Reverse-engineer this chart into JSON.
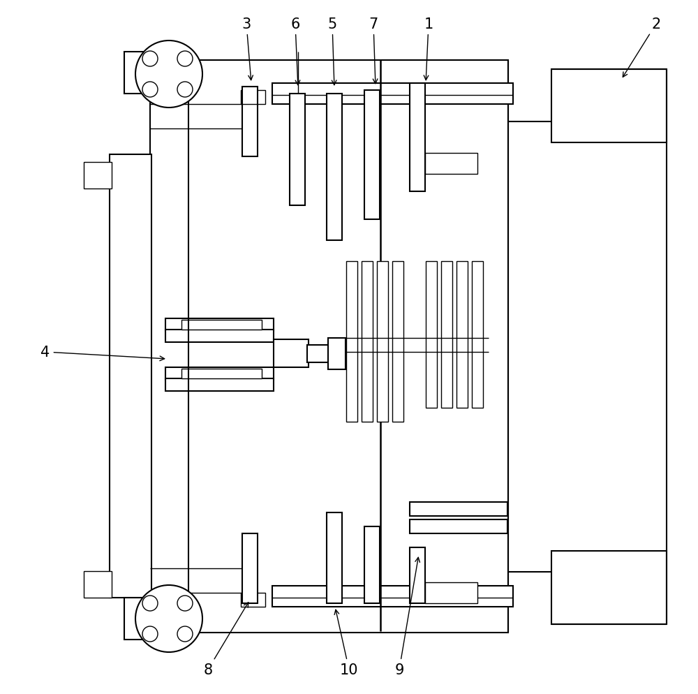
{
  "bg": "#ffffff",
  "lc": "#000000",
  "lw": 1.5,
  "lw2": 1.0,
  "fig_w": 10.0,
  "fig_h": 9.95,
  "labels": [
    "1",
    "2",
    "3",
    "4",
    "5",
    "6",
    "7",
    "8",
    "9",
    "10"
  ]
}
